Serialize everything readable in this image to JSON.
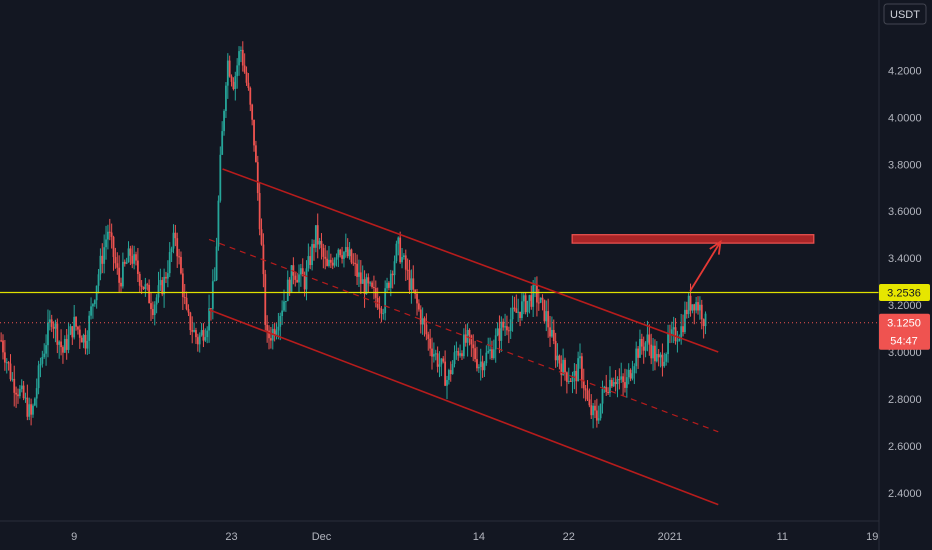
{
  "chart_data": {
    "type": "candlestick",
    "currency": "USDT",
    "ylim": [
      2.28,
      4.5
    ],
    "y_ticks": [
      "4.2000",
      "4.0000",
      "3.8000",
      "3.6000",
      "3.4000",
      "3.2000",
      "3.0000",
      "2.8000",
      "2.6000",
      "2.4000"
    ],
    "y_tick_values": [
      4.2,
      4.0,
      3.8,
      3.6,
      3.4,
      3.2,
      3.0,
      2.8,
      2.6,
      2.4
    ],
    "x_ticks": [
      {
        "label": "9",
        "day": 9
      },
      {
        "label": "23",
        "day": 23
      },
      {
        "label": "Dec",
        "day": 31
      },
      {
        "label": "14",
        "day": 45
      },
      {
        "label": "22",
        "day": 53
      },
      {
        "label": "2021",
        "day": 62
      },
      {
        "label": "11",
        "day": 72
      },
      {
        "label": "19",
        "day": 80
      }
    ],
    "x_domain_days": [
      2.4,
      80.6
    ],
    "price_path": [
      {
        "day": 2.5,
        "price": 3.05
      },
      {
        "day": 3.5,
        "price": 2.88
      },
      {
        "day": 4.5,
        "price": 2.8
      },
      {
        "day": 5.2,
        "price": 2.72
      },
      {
        "day": 6.0,
        "price": 2.95
      },
      {
        "day": 7.0,
        "price": 3.15
      },
      {
        "day": 8.0,
        "price": 3.0
      },
      {
        "day": 9.0,
        "price": 3.12
      },
      {
        "day": 10.0,
        "price": 3.05
      },
      {
        "day": 11.0,
        "price": 3.3
      },
      {
        "day": 12.0,
        "price": 3.52
      },
      {
        "day": 13.0,
        "price": 3.3
      },
      {
        "day": 14.0,
        "price": 3.42
      },
      {
        "day": 15.0,
        "price": 3.3
      },
      {
        "day": 16.0,
        "price": 3.2
      },
      {
        "day": 17.0,
        "price": 3.3
      },
      {
        "day": 18.0,
        "price": 3.5
      },
      {
        "day": 19.0,
        "price": 3.15
      },
      {
        "day": 20.0,
        "price": 3.05
      },
      {
        "day": 20.8,
        "price": 3.12
      },
      {
        "day": 21.5,
        "price": 3.3
      },
      {
        "day": 22.0,
        "price": 3.8
      },
      {
        "day": 22.6,
        "price": 4.25
      },
      {
        "day": 23.2,
        "price": 4.15
      },
      {
        "day": 23.8,
        "price": 4.3
      },
      {
        "day": 24.5,
        "price": 4.1
      },
      {
        "day": 25.0,
        "price": 3.9
      },
      {
        "day": 25.6,
        "price": 3.5
      },
      {
        "day": 26.1,
        "price": 3.05
      },
      {
        "day": 26.8,
        "price": 3.1
      },
      {
        "day": 27.5,
        "price": 3.2
      },
      {
        "day": 28.5,
        "price": 3.35
      },
      {
        "day": 29.5,
        "price": 3.3
      },
      {
        "day": 30.5,
        "price": 3.5
      },
      {
        "day": 31.5,
        "price": 3.35
      },
      {
        "day": 32.5,
        "price": 3.45
      },
      {
        "day": 33.5,
        "price": 3.4
      },
      {
        "day": 34.5,
        "price": 3.3
      },
      {
        "day": 35.5,
        "price": 3.25
      },
      {
        "day": 36.5,
        "price": 3.2
      },
      {
        "day": 37.2,
        "price": 3.35
      },
      {
        "day": 37.8,
        "price": 3.45
      },
      {
        "day": 38.5,
        "price": 3.35
      },
      {
        "day": 39.5,
        "price": 3.2
      },
      {
        "day": 40.5,
        "price": 3.05
      },
      {
        "day": 41.5,
        "price": 2.95
      },
      {
        "day": 42.2,
        "price": 2.88
      },
      {
        "day": 43.0,
        "price": 3.0
      },
      {
        "day": 44.0,
        "price": 3.05
      },
      {
        "day": 45.0,
        "price": 2.95
      },
      {
        "day": 46.0,
        "price": 3.0
      },
      {
        "day": 47.0,
        "price": 3.1
      },
      {
        "day": 48.0,
        "price": 3.15
      },
      {
        "day": 49.0,
        "price": 3.2
      },
      {
        "day": 50.0,
        "price": 3.25
      },
      {
        "day": 51.0,
        "price": 3.15
      },
      {
        "day": 51.8,
        "price": 3.0
      },
      {
        "day": 52.6,
        "price": 2.92
      },
      {
        "day": 53.4,
        "price": 2.88
      },
      {
        "day": 54.0,
        "price": 2.95
      },
      {
        "day": 54.8,
        "price": 2.75
      },
      {
        "day": 55.5,
        "price": 2.72
      },
      {
        "day": 56.2,
        "price": 2.85
      },
      {
        "day": 57.0,
        "price": 2.9
      },
      {
        "day": 58.0,
        "price": 2.85
      },
      {
        "day": 59.0,
        "price": 3.0
      },
      {
        "day": 60.0,
        "price": 3.05
      },
      {
        "day": 61.0,
        "price": 2.95
      },
      {
        "day": 62.0,
        "price": 3.05
      },
      {
        "day": 63.0,
        "price": 3.1
      },
      {
        "day": 63.6,
        "price": 3.2
      },
      {
        "day": 64.2,
        "price": 3.22
      },
      {
        "day": 64.8,
        "price": 3.18
      },
      {
        "day": 65.3,
        "price": 3.1
      }
    ],
    "channel": {
      "color": "#b71c1c",
      "upper": {
        "from": {
          "day": 22.2,
          "price": 3.78
        },
        "to": {
          "day": 66.3,
          "price": 3.0
        }
      },
      "middle": {
        "from": {
          "day": 21.0,
          "price": 3.48
        },
        "to": {
          "day": 66.3,
          "price": 2.66
        }
      },
      "lower": {
        "from": {
          "day": 21.0,
          "price": 3.18
        },
        "to": {
          "day": 66.3,
          "price": 2.35
        }
      }
    },
    "resistance_line": {
      "price": 3.2536,
      "color": "#e0e000"
    },
    "target_zone": {
      "from_day": 53.3,
      "to_day": 74.8,
      "price_top": 3.5,
      "price_bottom": 3.464,
      "color": "#c62828"
    },
    "projection_arrow": {
      "from": {
        "day": 63.8,
        "price": 3.26
      },
      "to": {
        "day": 66.5,
        "price": 3.47
      },
      "color": "#e53935"
    },
    "current_price_line": {
      "price": 3.125,
      "color": "#ef5350"
    },
    "hidden_tick": 3.0
  },
  "axis": {
    "currency_label": "USDT",
    "resistance_badge": "3.2536",
    "price_badge": "3.1250",
    "countdown_badge": "54:47",
    "partial_tick": "3.0000"
  }
}
